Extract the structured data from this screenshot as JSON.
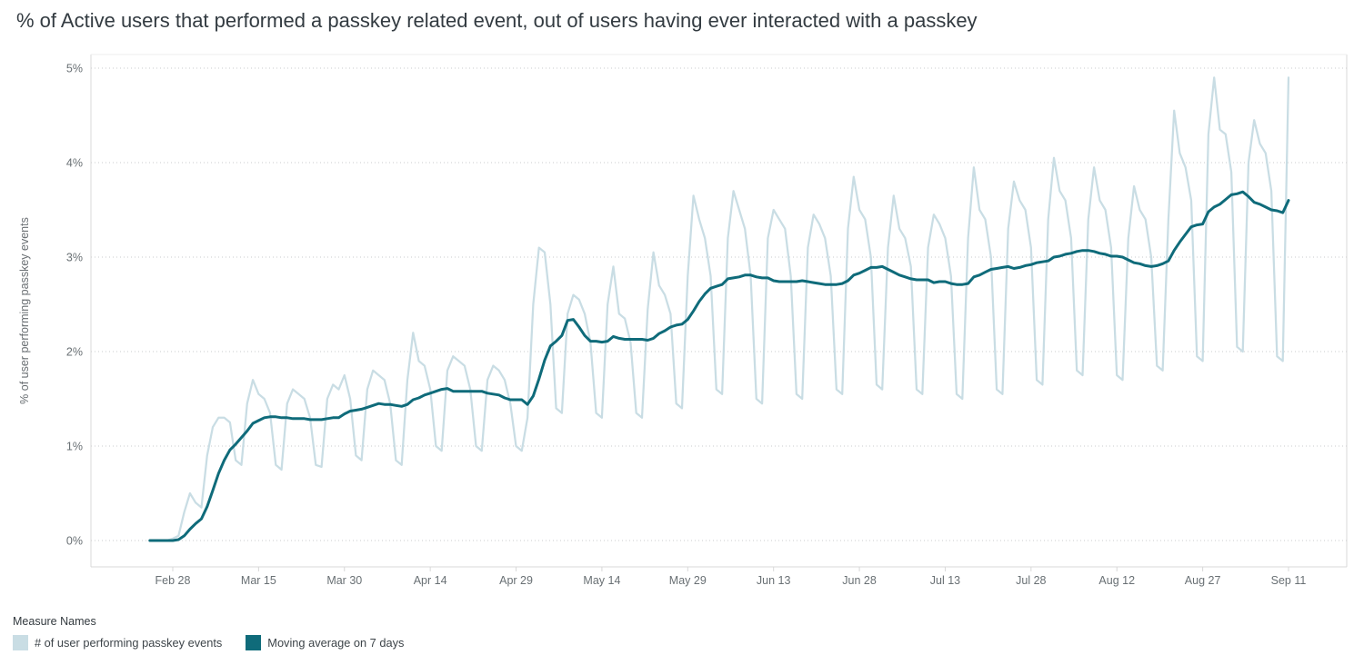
{
  "legend": {
    "title": "Measure Names"
  },
  "chart_data": {
    "type": "line",
    "title": "% of Active users that performed a passkey related event, out of users having ever interacted with a passkey",
    "xlabel": "",
    "ylabel": "% of user performing passkey events",
    "ylim": [
      0,
      5
    ],
    "y_ticks": [
      "0%",
      "1%",
      "2%",
      "3%",
      "4%",
      "5%"
    ],
    "x_ticks": [
      "Feb 28",
      "Mar 15",
      "Mar 30",
      "Apr 14",
      "Apr 29",
      "May 14",
      "May 29",
      "Jun 13",
      "Jun 28",
      "Jul 13",
      "Jul 28",
      "Aug 12",
      "Aug 27",
      "Sep 11"
    ],
    "grid": "horizontal-dotted",
    "legend_position": "bottom-left",
    "x": [
      "Feb 24",
      "Feb 25",
      "Feb 26",
      "Feb 27",
      "Feb 28",
      "Mar 1",
      "Mar 2",
      "Mar 3",
      "Mar 4",
      "Mar 5",
      "Mar 6",
      "Mar 7",
      "Mar 8",
      "Mar 9",
      "Mar 10",
      "Mar 11",
      "Mar 12",
      "Mar 13",
      "Mar 14",
      "Mar 15",
      "Mar 16",
      "Mar 17",
      "Mar 18",
      "Mar 19",
      "Mar 20",
      "Mar 21",
      "Mar 22",
      "Mar 23",
      "Mar 24",
      "Mar 25",
      "Mar 26",
      "Mar 27",
      "Mar 28",
      "Mar 29",
      "Mar 30",
      "Mar 31",
      "Apr 1",
      "Apr 2",
      "Apr 3",
      "Apr 4",
      "Apr 5",
      "Apr 6",
      "Apr 7",
      "Apr 8",
      "Apr 9",
      "Apr 10",
      "Apr 11",
      "Apr 12",
      "Apr 13",
      "Apr 14",
      "Apr 15",
      "Apr 16",
      "Apr 17",
      "Apr 18",
      "Apr 19",
      "Apr 20",
      "Apr 21",
      "Apr 22",
      "Apr 23",
      "Apr 24",
      "Apr 25",
      "Apr 26",
      "Apr 27",
      "Apr 28",
      "Apr 29",
      "Apr 30",
      "May 1",
      "May 2",
      "May 3",
      "May 4",
      "May 5",
      "May 6",
      "May 7",
      "May 8",
      "May 9",
      "May 10",
      "May 11",
      "May 12",
      "May 13",
      "May 14",
      "May 15",
      "May 16",
      "May 17",
      "May 18",
      "May 19",
      "May 20",
      "May 21",
      "May 22",
      "May 23",
      "May 24",
      "May 25",
      "May 26",
      "May 27",
      "May 28",
      "May 29",
      "May 30",
      "May 31",
      "Jun 1",
      "Jun 2",
      "Jun 3",
      "Jun 4",
      "Jun 5",
      "Jun 6",
      "Jun 7",
      "Jun 8",
      "Jun 9",
      "Jun 10",
      "Jun 11",
      "Jun 12",
      "Jun 13",
      "Jun 14",
      "Jun 15",
      "Jun 16",
      "Jun 17",
      "Jun 18",
      "Jun 19",
      "Jun 20",
      "Jun 21",
      "Jun 22",
      "Jun 23",
      "Jun 24",
      "Jun 25",
      "Jun 26",
      "Jun 27",
      "Jun 28",
      "Jun 29",
      "Jun 30",
      "Jul 1",
      "Jul 2",
      "Jul 3",
      "Jul 4",
      "Jul 5",
      "Jul 6",
      "Jul 7",
      "Jul 8",
      "Jul 9",
      "Jul 10",
      "Jul 11",
      "Jul 12",
      "Jul 13",
      "Jul 14",
      "Jul 15",
      "Jul 16",
      "Jul 17",
      "Jul 18",
      "Jul 19",
      "Jul 20",
      "Jul 21",
      "Jul 22",
      "Jul 23",
      "Jul 24",
      "Jul 25",
      "Jul 26",
      "Jul 27",
      "Jul 28",
      "Jul 29",
      "Jul 30",
      "Jul 31",
      "Aug 1",
      "Aug 2",
      "Aug 3",
      "Aug 4",
      "Aug 5",
      "Aug 6",
      "Aug 7",
      "Aug 8",
      "Aug 9",
      "Aug 10",
      "Aug 11",
      "Aug 12",
      "Aug 13",
      "Aug 14",
      "Aug 15",
      "Aug 16",
      "Aug 17",
      "Aug 18",
      "Aug 19",
      "Aug 20",
      "Aug 21",
      "Aug 22",
      "Aug 23",
      "Aug 24",
      "Aug 25",
      "Aug 26",
      "Aug 27",
      "Aug 28",
      "Aug 29",
      "Aug 30",
      "Aug 31",
      "Sep 1",
      "Sep 2",
      "Sep 3",
      "Sep 4",
      "Sep 5",
      "Sep 6",
      "Sep 7",
      "Sep 8",
      "Sep 9",
      "Sep 10",
      "Sep 11"
    ],
    "series": [
      {
        "name": "# of user performing passkey events",
        "color": "#c9dde4",
        "values": [
          0,
          0,
          0,
          0,
          0.02,
          0.05,
          0.3,
          0.5,
          0.4,
          0.35,
          0.9,
          1.2,
          1.3,
          1.3,
          1.25,
          0.85,
          0.8,
          1.45,
          1.7,
          1.55,
          1.5,
          1.35,
          0.8,
          0.75,
          1.45,
          1.6,
          1.55,
          1.5,
          1.3,
          0.8,
          0.78,
          1.5,
          1.65,
          1.6,
          1.75,
          1.5,
          0.9,
          0.85,
          1.6,
          1.8,
          1.75,
          1.7,
          1.45,
          0.85,
          0.8,
          1.7,
          2.2,
          1.9,
          1.85,
          1.6,
          1.0,
          0.95,
          1.8,
          1.95,
          1.9,
          1.85,
          1.6,
          1.0,
          0.95,
          1.7,
          1.85,
          1.8,
          1.7,
          1.45,
          1.0,
          0.95,
          1.3,
          2.5,
          3.1,
          3.05,
          2.5,
          1.4,
          1.35,
          2.4,
          2.6,
          2.55,
          2.4,
          2.1,
          1.35,
          1.3,
          2.5,
          2.9,
          2.4,
          2.35,
          2.1,
          1.35,
          1.3,
          2.45,
          3.05,
          2.7,
          2.6,
          2.4,
          1.45,
          1.4,
          2.8,
          3.65,
          3.4,
          3.2,
          2.8,
          1.6,
          1.55,
          3.2,
          3.7,
          3.5,
          3.3,
          2.8,
          1.5,
          1.45,
          3.2,
          3.5,
          3.4,
          3.3,
          2.8,
          1.55,
          1.5,
          3.1,
          3.45,
          3.35,
          3.2,
          2.8,
          1.6,
          1.55,
          3.3,
          3.85,
          3.5,
          3.4,
          3.0,
          1.65,
          1.6,
          3.1,
          3.65,
          3.3,
          3.2,
          2.9,
          1.6,
          1.55,
          3.1,
          3.45,
          3.35,
          3.2,
          2.8,
          1.55,
          1.5,
          3.2,
          3.95,
          3.5,
          3.4,
          3.0,
          1.6,
          1.55,
          3.3,
          3.8,
          3.6,
          3.5,
          3.1,
          1.7,
          1.65,
          3.4,
          4.05,
          3.7,
          3.6,
          3.2,
          1.8,
          1.75,
          3.4,
          3.95,
          3.6,
          3.5,
          3.1,
          1.75,
          1.7,
          3.2,
          3.75,
          3.5,
          3.4,
          3.0,
          1.85,
          1.8,
          3.4,
          4.55,
          4.1,
          3.95,
          3.6,
          1.95,
          1.9,
          4.3,
          4.9,
          4.35,
          4.3,
          3.9,
          2.05,
          2.0,
          4.0,
          4.45,
          4.2,
          4.1,
          3.7,
          1.95,
          1.9,
          4.9
        ]
      },
      {
        "name": "Moving average on 7 days",
        "color": "#0f6b7a",
        "window_days": 7,
        "values": [
          0,
          0,
          0,
          0,
          0,
          0.01,
          0.05,
          0.12,
          0.18,
          0.23,
          0.36,
          0.53,
          0.71,
          0.85,
          0.96,
          1.02,
          1.09,
          1.16,
          1.24,
          1.27,
          1.3,
          1.31,
          1.31,
          1.3,
          1.3,
          1.29,
          1.29,
          1.29,
          1.28,
          1.28,
          1.28,
          1.29,
          1.3,
          1.3,
          1.34,
          1.37,
          1.38,
          1.39,
          1.41,
          1.43,
          1.45,
          1.44,
          1.44,
          1.43,
          1.42,
          1.44,
          1.49,
          1.51,
          1.54,
          1.56,
          1.58,
          1.6,
          1.61,
          1.58,
          1.58,
          1.58,
          1.58,
          1.58,
          1.58,
          1.56,
          1.55,
          1.54,
          1.51,
          1.49,
          1.49,
          1.49,
          1.44,
          1.53,
          1.71,
          1.91,
          2.06,
          2.11,
          2.17,
          2.33,
          2.34,
          2.26,
          2.17,
          2.11,
          2.11,
          2.1,
          2.11,
          2.16,
          2.14,
          2.13,
          2.13,
          2.13,
          2.13,
          2.12,
          2.14,
          2.19,
          2.22,
          2.26,
          2.28,
          2.29,
          2.34,
          2.43,
          2.53,
          2.61,
          2.67,
          2.69,
          2.71,
          2.77,
          2.78,
          2.79,
          2.81,
          2.81,
          2.79,
          2.78,
          2.78,
          2.75,
          2.74,
          2.74,
          2.74,
          2.74,
          2.75,
          2.74,
          2.73,
          2.72,
          2.71,
          2.71,
          2.71,
          2.72,
          2.75,
          2.81,
          2.83,
          2.86,
          2.89,
          2.89,
          2.9,
          2.87,
          2.84,
          2.81,
          2.79,
          2.77,
          2.76,
          2.76,
          2.76,
          2.73,
          2.74,
          2.74,
          2.72,
          2.71,
          2.71,
          2.72,
          2.79,
          2.81,
          2.84,
          2.87,
          2.88,
          2.89,
          2.9,
          2.88,
          2.89,
          2.91,
          2.92,
          2.94,
          2.95,
          2.96,
          3.0,
          3.01,
          3.03,
          3.04,
          3.06,
          3.07,
          3.07,
          3.06,
          3.04,
          3.03,
          3.01,
          3.01,
          3.0,
          2.97,
          2.94,
          2.93,
          2.91,
          2.9,
          2.91,
          2.93,
          2.96,
          3.07,
          3.16,
          3.24,
          3.32,
          3.34,
          3.35,
          3.48,
          3.53,
          3.56,
          3.61,
          3.66,
          3.67,
          3.69,
          3.64,
          3.58,
          3.56,
          3.53,
          3.5,
          3.49,
          3.47,
          3.6
        ]
      }
    ]
  }
}
